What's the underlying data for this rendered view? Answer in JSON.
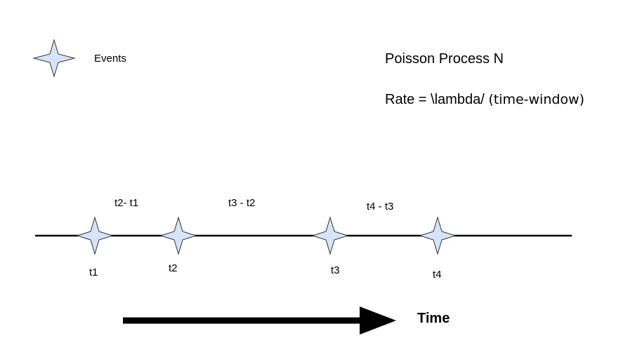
{
  "legend": {
    "icon": "four-point-star-icon",
    "label": "Events"
  },
  "title": "Poisson Process N",
  "rate": {
    "prefix": "Rate = \\lambda/ ",
    "suffix": "(time-window)"
  },
  "events": [
    {
      "label": "t1"
    },
    {
      "label": "t2"
    },
    {
      "label": "t3"
    },
    {
      "label": "t4"
    }
  ],
  "intervals": [
    {
      "label": "t2- t1"
    },
    {
      "label": "t3 - t2"
    },
    {
      "label": "t4 - t3"
    }
  ],
  "arrow_label": "Time",
  "colors": {
    "star_fill": "#d6e4f7",
    "star_stroke": "#333333",
    "line": "#000000"
  }
}
